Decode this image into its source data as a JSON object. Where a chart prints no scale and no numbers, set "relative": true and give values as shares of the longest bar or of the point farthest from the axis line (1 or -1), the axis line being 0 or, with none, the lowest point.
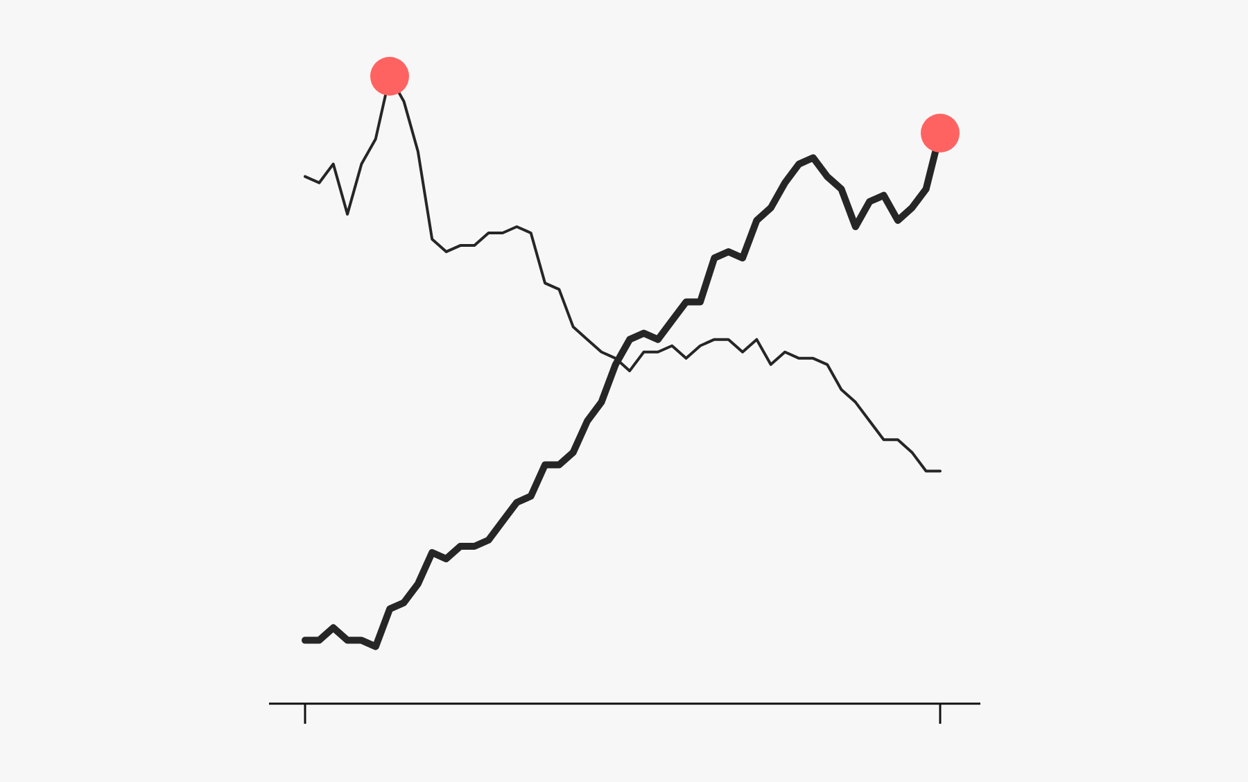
{
  "chart_data": {
    "type": "line",
    "relative": true,
    "tick_labels": false,
    "grid": false,
    "legend": false,
    "marker": "none",
    "categories": [
      null,
      null,
      null,
      null,
      null,
      null,
      null,
      null,
      null,
      null,
      null,
      null,
      null,
      null,
      null,
      null,
      null,
      null,
      null,
      null,
      null,
      null,
      null,
      null,
      null,
      null,
      null,
      null,
      null,
      null,
      null,
      null,
      null,
      null,
      null,
      null,
      null,
      null,
      null,
      null,
      null,
      null,
      null,
      null,
      null,
      null
    ],
    "series": [
      {
        "color": "#262626",
        "values": [
          0.84,
          0.83,
          0.86,
          0.78,
          0.86,
          0.9,
          1.0,
          0.96,
          0.88,
          0.74,
          0.72,
          0.73,
          0.73,
          0.75,
          0.75,
          0.76,
          0.75,
          0.67,
          0.66,
          0.6,
          0.58,
          0.56,
          0.55,
          0.53,
          0.56,
          0.56,
          0.57,
          0.55,
          0.57,
          0.58,
          0.58,
          0.56,
          0.58,
          0.54,
          0.56,
          0.55,
          0.55,
          0.54,
          0.5,
          0.48,
          0.45,
          0.42,
          0.42,
          0.4,
          0.37,
          0.37
        ]
      },
      {
        "color": "#262626",
        "values": [
          0.1,
          0.1,
          0.12,
          0.1,
          0.1,
          0.09,
          0.15,
          0.16,
          0.19,
          0.24,
          0.23,
          0.25,
          0.25,
          0.26,
          0.29,
          0.32,
          0.33,
          0.38,
          0.38,
          0.4,
          0.45,
          0.48,
          0.54,
          0.58,
          0.59,
          0.58,
          0.61,
          0.64,
          0.64,
          0.71,
          0.72,
          0.71,
          0.77,
          0.79,
          0.83,
          0.86,
          0.87,
          0.84,
          0.82,
          0.76,
          0.8,
          0.81,
          0.77,
          0.79,
          0.82,
          0.91
        ]
      }
    ]
  }
}
